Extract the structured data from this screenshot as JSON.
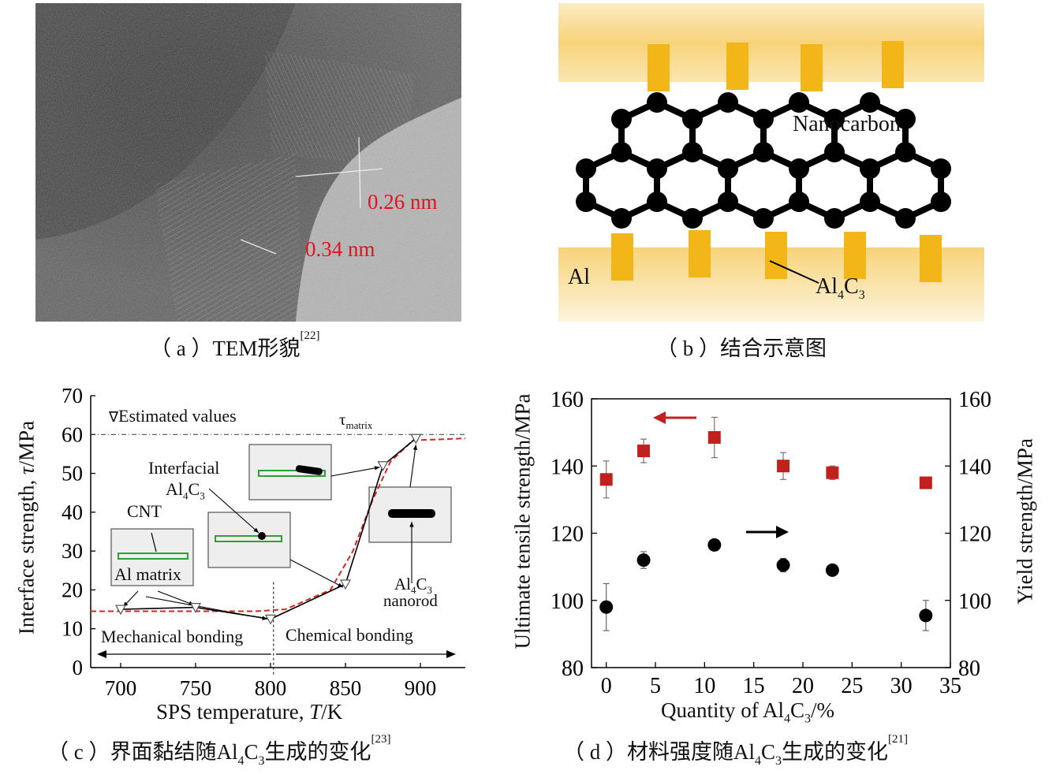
{
  "panel_a": {
    "label_026": "0.26 nm",
    "label_034": "0.34 nm",
    "caption": {
      "prefix": "（ a ）TEM形貌",
      "ref": "[22]"
    }
  },
  "panel_b": {
    "nanocarbon": "Nanocarbon",
    "al": "Al",
    "al4c3": {
      "a": "Al",
      "s1": "4",
      "c": "C",
      "s2": "3"
    },
    "caption": "（ b ）结合示意图",
    "colors": {
      "band": "#f7d37a",
      "block": "#f2b619"
    }
  },
  "panel_c": {
    "caption": {
      "a": "（ c ）界面黏结随Al",
      "s1": "4",
      "b": "C",
      "s2": "3",
      "c": "生成的变化",
      "ref": "[23]"
    },
    "legend": "Estimated values",
    "tau_matrix": {
      "tau": "τ",
      "sub": "matrix"
    },
    "label_interfacial": "Interfacial",
    "label_al4c3": {
      "a": "Al",
      "s1": "4",
      "c": "C",
      "s2": "3"
    },
    "label_cnt": "CNT",
    "label_al_matrix": "Al matrix",
    "label_nanorod_al4c3": {
      "a": "Al",
      "s1": "4",
      "c": "C",
      "s2": "3"
    },
    "label_nanorod": "nanorod",
    "label_mechanical": "Mechanical bonding",
    "label_chemical": "Chemical bonding"
  },
  "panel_d": {
    "caption": {
      "a": "（ d ）材料强度随Al",
      "s1": "4",
      "b": "C",
      "s2": "3",
      "c": "生成的变化",
      "ref": "[21]"
    }
  },
  "chart_data": [
    {
      "type": "line",
      "id": "panel-c",
      "xlabel": {
        "a": "SPS temperature, ",
        "i": "T",
        "b": "/K"
      },
      "ylabel": {
        "a": "Interface strength, ",
        "i": "τ",
        "b": "/MPa"
      },
      "xlim": [
        680,
        930
      ],
      "ylim": [
        0,
        70
      ],
      "xticks": [
        700,
        750,
        800,
        850,
        900
      ],
      "yticks": [
        0,
        10,
        20,
        30,
        40,
        50,
        60,
        70
      ],
      "reference_line": {
        "y": 60
      },
      "divider_x": 802,
      "series": [
        {
          "name": "Estimated values",
          "marker": "triangle-down",
          "x": [
            700,
            750,
            800,
            850,
            875,
            897
          ],
          "y": [
            15,
            15.5,
            12.5,
            21.5,
            52,
            59
          ]
        },
        {
          "style": "solid",
          "color": "#000000",
          "x": [
            700,
            750,
            800,
            850,
            875,
            897
          ],
          "y": [
            15,
            15.5,
            12.5,
            21.5,
            52,
            59
          ]
        },
        {
          "style": "dashed",
          "color": "#d0281c",
          "x": [
            680,
            700,
            750,
            790,
            810,
            840,
            855,
            868,
            880,
            895,
            930
          ],
          "y": [
            14.5,
            14.5,
            14.5,
            14.5,
            15,
            20,
            30,
            43,
            53,
            58.5,
            59
          ]
        }
      ]
    },
    {
      "type": "scatter",
      "id": "panel-d",
      "xlabel": {
        "a": "Quantity of Al",
        "s1": "4",
        "c": "C",
        "s2": "3",
        "b": "/%"
      },
      "ylabel_left": "Ultimate tensile strength/MPa",
      "ylabel_right": "Yield strength/MPa",
      "xlim": [
        -1.5,
        35
      ],
      "ylim_left": [
        80,
        160
      ],
      "ylim_right": [
        80,
        160
      ],
      "xticks": [
        0,
        5,
        10,
        15,
        20,
        25,
        30,
        35
      ],
      "yticks": [
        80,
        100,
        120,
        140,
        160
      ],
      "series": [
        {
          "axis": "left",
          "marker": "square",
          "color": "#c0201e",
          "x": [
            0,
            3.8,
            11,
            18,
            23,
            32.5
          ],
          "y": [
            136,
            144.5,
            148.5,
            140,
            138,
            135
          ],
          "err": [
            5.5,
            3.5,
            6,
            4,
            2,
            0
          ]
        },
        {
          "axis": "right",
          "marker": "circle",
          "color": "#000000",
          "x": [
            0,
            3.8,
            11,
            18,
            23,
            32.5
          ],
          "y": [
            98,
            112,
            116.5,
            110.5,
            109,
            95.5
          ],
          "err": [
            7,
            2.5,
            0,
            2,
            0,
            4.5
          ]
        }
      ]
    }
  ]
}
